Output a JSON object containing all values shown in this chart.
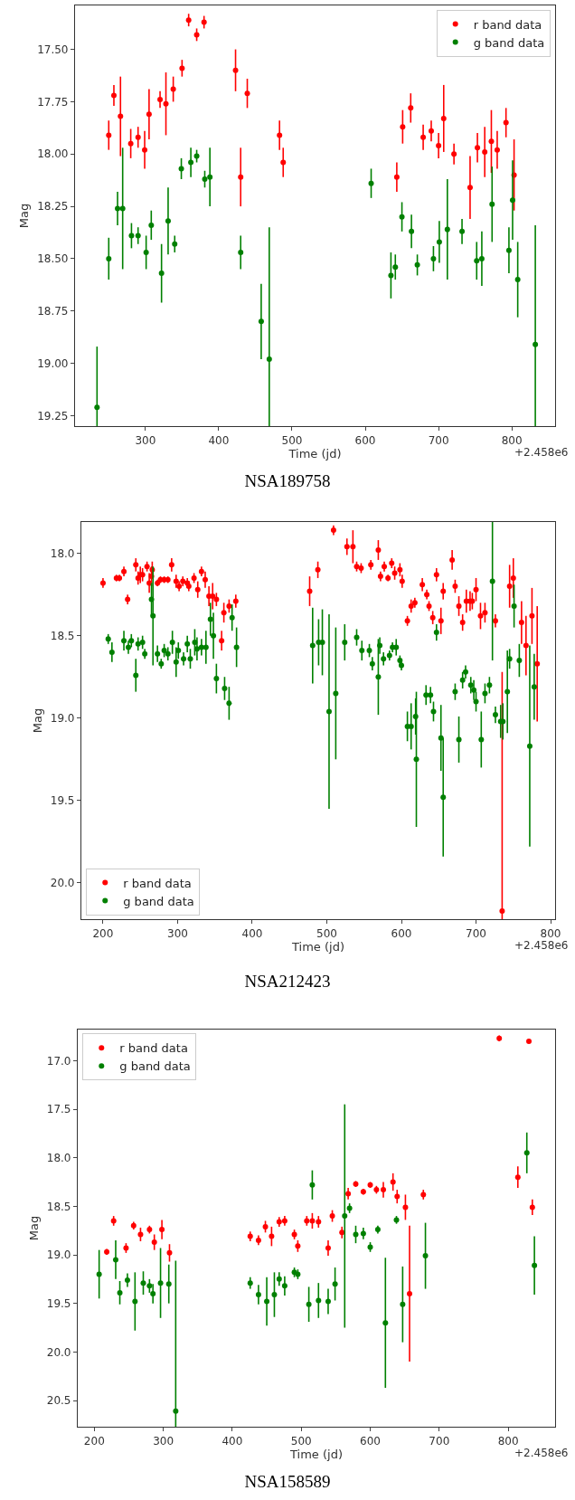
{
  "chart_data": [
    {
      "type": "scatter",
      "title": "NSA189758",
      "xlabel": "Time (jd)",
      "ylabel": "Mag",
      "annotations": [
        "+2.458e6"
      ],
      "xlim": [
        204,
        859
      ],
      "xticks": [
        300,
        400,
        500,
        600,
        700,
        800
      ],
      "ylim": [
        19.3,
        17.29
      ],
      "yticks": [
        {
          "value": 17.5,
          "label": "17.50"
        },
        {
          "value": 17.75,
          "label": "17.75"
        },
        {
          "value": 18.0,
          "label": "18.00"
        },
        {
          "value": 18.25,
          "label": "18.25"
        },
        {
          "value": 18.5,
          "label": "18.50"
        },
        {
          "value": 18.75,
          "label": "18.75"
        },
        {
          "value": 19.0,
          "label": "19.00"
        },
        {
          "value": 19.25,
          "label": "19.25"
        }
      ],
      "grid": false,
      "legend": "top right",
      "marker": "circle",
      "series": [
        {
          "name": "r band data",
          "color": "#ff0000",
          "x": [
            250,
            257,
            266,
            280,
            290,
            299,
            305,
            320,
            328,
            338,
            350,
            359,
            370,
            380,
            423,
            430,
            439,
            483,
            488,
            643,
            651,
            662,
            679,
            690,
            700,
            707,
            721,
            743,
            753,
            763,
            772,
            780,
            792,
            803
          ],
          "values": [
            17.91,
            17.72,
            17.82,
            17.95,
            17.92,
            17.98,
            17.81,
            17.74,
            17.76,
            17.69,
            17.59,
            17.36,
            17.43,
            17.37,
            17.6,
            18.11,
            17.71,
            17.91,
            18.04,
            18.11,
            17.87,
            17.78,
            17.92,
            17.89,
            17.96,
            17.83,
            18.0,
            18.16,
            17.97,
            17.99,
            17.94,
            17.98,
            17.85,
            18.1
          ],
          "errors": [
            0.07,
            0.05,
            0.19,
            0.07,
            0.05,
            0.09,
            0.12,
            0.04,
            0.15,
            0.06,
            0.04,
            0.03,
            0.03,
            0.03,
            0.1,
            0.14,
            0.07,
            0.07,
            0.07,
            0.07,
            0.08,
            0.07,
            0.06,
            0.05,
            0.06,
            0.16,
            0.05,
            0.15,
            0.07,
            0.12,
            0.15,
            0.09,
            0.07,
            0.17
          ]
        },
        {
          "name": "g band data",
          "color": "#008000",
          "x": [
            234,
            250,
            262,
            269,
            281,
            290,
            301,
            308,
            322,
            331,
            340,
            349,
            362,
            370,
            381,
            388,
            430,
            458,
            469,
            608,
            635,
            641,
            650,
            663,
            671,
            693,
            701,
            712,
            732,
            752,
            759,
            773,
            796,
            801,
            808,
            832
          ],
          "values": [
            19.21,
            18.5,
            18.26,
            18.26,
            18.39,
            18.39,
            18.47,
            18.34,
            18.57,
            18.32,
            18.43,
            18.07,
            18.04,
            18.01,
            18.12,
            18.11,
            18.47,
            18.8,
            18.98,
            18.14,
            18.58,
            18.54,
            18.3,
            18.37,
            18.53,
            18.5,
            18.42,
            18.36,
            18.37,
            18.51,
            18.5,
            18.24,
            18.46,
            18.22,
            18.6,
            18.91
          ],
          "errors": [
            0.29,
            0.1,
            0.08,
            0.29,
            0.06,
            0.04,
            0.08,
            0.07,
            0.14,
            0.16,
            0.04,
            0.05,
            0.07,
            0.03,
            0.04,
            0.14,
            0.08,
            0.18,
            0.63,
            0.07,
            0.11,
            0.06,
            0.07,
            0.08,
            0.05,
            0.06,
            0.1,
            0.24,
            0.06,
            0.09,
            0.13,
            0.18,
            0.11,
            0.19,
            0.18,
            0.57
          ]
        }
      ]
    },
    {
      "type": "scatter",
      "title": "NSA212423",
      "xlabel": "Time (jd)",
      "ylabel": "Mag",
      "annotations": [
        "+2.458e6"
      ],
      "xlim": [
        171,
        806
      ],
      "xticks": [
        200,
        300,
        400,
        500,
        600,
        700,
        800
      ],
      "ylim": [
        20.22,
        17.81
      ],
      "yticks": [
        {
          "value": 18.0,
          "label": "18.0"
        },
        {
          "value": 18.5,
          "label": "18.5"
        },
        {
          "value": 19.0,
          "label": "19.0"
        },
        {
          "value": 19.5,
          "label": "19.5"
        },
        {
          "value": 20.0,
          "label": "20.0"
        }
      ],
      "grid": false,
      "legend": "bottom left",
      "marker": "circle",
      "series": [
        {
          "name": "r band data",
          "color": "#ff0000",
          "x": [
            200,
            218,
            222,
            228,
            233,
            244,
            247,
            250,
            253,
            259,
            262,
            265,
            266,
            273,
            277,
            282,
            287,
            292,
            298,
            302,
            307,
            313,
            315,
            322,
            327,
            332,
            337,
            342,
            347,
            352,
            359,
            362,
            369,
            378,
            477,
            488,
            509,
            527,
            535,
            540,
            546,
            559,
            569,
            572,
            577,
            582,
            587,
            591,
            598,
            601,
            608,
            613,
            618,
            628,
            634,
            637,
            642,
            647,
            653,
            656,
            668,
            672,
            677,
            682,
            687,
            692,
            695,
            700,
            706,
            712,
            726,
            735,
            745,
            750,
            761,
            767,
            775,
            782
          ],
          "values": [
            18.18,
            18.15,
            18.15,
            18.11,
            18.28,
            18.07,
            18.15,
            18.13,
            18.13,
            18.08,
            18.18,
            18.14,
            18.1,
            18.18,
            18.16,
            18.16,
            18.16,
            18.07,
            18.17,
            18.2,
            18.17,
            18.18,
            18.2,
            18.15,
            18.22,
            18.11,
            18.16,
            18.26,
            18.26,
            18.28,
            18.53,
            18.36,
            18.32,
            18.29,
            18.23,
            18.1,
            17.86,
            17.96,
            17.96,
            18.08,
            18.09,
            18.07,
            17.98,
            18.14,
            18.08,
            18.15,
            18.06,
            18.12,
            18.1,
            18.17,
            18.41,
            18.32,
            18.3,
            18.19,
            18.25,
            18.32,
            18.39,
            18.13,
            18.41,
            18.23,
            18.04,
            18.2,
            18.32,
            18.42,
            18.29,
            18.29,
            18.29,
            18.22,
            18.38,
            18.36,
            18.41,
            20.17,
            18.2,
            18.15,
            18.42,
            18.56,
            18.38,
            18.67
          ],
          "errors": [
            0.03,
            0.02,
            0.02,
            0.03,
            0.03,
            0.04,
            0.04,
            0.05,
            0.04,
            0.03,
            0.06,
            0.06,
            0.05,
            0.02,
            0.02,
            0.02,
            0.02,
            0.04,
            0.04,
            0.03,
            0.03,
            0.03,
            0.03,
            0.03,
            0.05,
            0.03,
            0.05,
            0.06,
            0.08,
            0.04,
            0.06,
            0.06,
            0.04,
            0.04,
            0.09,
            0.05,
            0.03,
            0.05,
            0.1,
            0.03,
            0.03,
            0.03,
            0.06,
            0.03,
            0.03,
            0.02,
            0.03,
            0.04,
            0.04,
            0.04,
            0.03,
            0.04,
            0.03,
            0.04,
            0.03,
            0.03,
            0.04,
            0.04,
            0.08,
            0.05,
            0.06,
            0.04,
            0.06,
            0.05,
            0.07,
            0.06,
            0.05,
            0.07,
            0.08,
            0.06,
            0.04,
            1.45,
            0.13,
            0.12,
            0.13,
            0.18,
            0.17,
            0.35
          ]
        },
        {
          "name": "g band data",
          "color": "#008000",
          "x": [
            207,
            212,
            228,
            234,
            238,
            244,
            247,
            253,
            256,
            265,
            267,
            273,
            278,
            282,
            287,
            293,
            298,
            301,
            308,
            313,
            317,
            323,
            326,
            332,
            338,
            344,
            348,
            352,
            363,
            369,
            373,
            379,
            481,
            489,
            494,
            503,
            512,
            524,
            540,
            547,
            557,
            561,
            569,
            571,
            576,
            584,
            588,
            593,
            598,
            600,
            608,
            613,
            619,
            620,
            633,
            639,
            643,
            647,
            653,
            656,
            672,
            677,
            682,
            686,
            693,
            697,
            700,
            707,
            712,
            718,
            722,
            726,
            733,
            736,
            742,
            745,
            751,
            758,
            772,
            778
          ],
          "values": [
            18.52,
            18.6,
            18.53,
            18.57,
            18.53,
            18.74,
            18.55,
            18.54,
            18.61,
            18.28,
            18.38,
            18.61,
            18.67,
            18.59,
            18.61,
            18.54,
            18.66,
            18.59,
            18.64,
            18.55,
            18.64,
            18.54,
            18.58,
            18.57,
            18.57,
            18.4,
            18.5,
            18.76,
            18.82,
            18.91,
            18.39,
            18.57,
            18.56,
            18.54,
            18.54,
            18.96,
            18.85,
            18.54,
            18.51,
            18.59,
            18.59,
            18.67,
            18.75,
            18.56,
            18.64,
            18.62,
            18.57,
            18.57,
            18.65,
            18.68,
            19.05,
            19.05,
            18.99,
            19.25,
            18.86,
            18.86,
            18.96,
            18.48,
            19.12,
            19.48,
            18.84,
            19.13,
            18.77,
            18.72,
            18.8,
            18.83,
            18.9,
            19.13,
            18.85,
            18.8,
            18.17,
            18.98,
            19.02,
            19.02,
            18.84,
            18.64,
            18.32,
            18.65,
            19.17,
            18.81
          ],
          "errors": [
            0.03,
            0.06,
            0.06,
            0.04,
            0.04,
            0.1,
            0.04,
            0.04,
            0.03,
            0.1,
            0.3,
            0.05,
            0.03,
            0.04,
            0.04,
            0.07,
            0.09,
            0.05,
            0.04,
            0.05,
            0.06,
            0.08,
            0.07,
            0.05,
            0.1,
            0.1,
            0.14,
            0.09,
            0.07,
            0.1,
            0.08,
            0.12,
            0.23,
            0.14,
            0.2,
            0.59,
            0.4,
            0.11,
            0.05,
            0.06,
            0.04,
            0.04,
            0.23,
            0.05,
            0.04,
            0.03,
            0.03,
            0.05,
            0.03,
            0.03,
            0.09,
            0.14,
            0.11,
            0.41,
            0.06,
            0.05,
            0.06,
            0.05,
            0.2,
            0.36,
            0.05,
            0.14,
            0.05,
            0.04,
            0.05,
            0.06,
            0.06,
            0.17,
            0.06,
            0.05,
            0.48,
            0.05,
            0.1,
            0.11,
            0.25,
            0.06,
            0.13,
            0.1,
            0.61,
            0.2
          ]
        }
      ]
    },
    {
      "type": "scatter",
      "title": "NSA158589",
      "xlabel": "Time (jd)",
      "ylabel": "Mag",
      "annotations": [
        "+2.458e6"
      ],
      "xlim": [
        176,
        868
      ],
      "xticks": [
        200,
        300,
        400,
        500,
        600,
        700,
        800
      ],
      "ylim": [
        20.77,
        16.68
      ],
      "yticks": [
        {
          "value": 17.0,
          "label": "17.0"
        },
        {
          "value": 17.5,
          "label": "17.5"
        },
        {
          "value": 18.0,
          "label": "18.0"
        },
        {
          "value": 18.5,
          "label": "18.5"
        },
        {
          "value": 19.0,
          "label": "19.0"
        },
        {
          "value": 19.5,
          "label": "19.5"
        },
        {
          "value": 20.0,
          "label": "20.0"
        },
        {
          "value": 20.5,
          "label": "20.5"
        }
      ],
      "grid": false,
      "legend": "top left",
      "marker": "circle",
      "series": [
        {
          "name": "r band data",
          "color": "#ff0000",
          "x": [
            218,
            228,
            246,
            257,
            267,
            280,
            287,
            298,
            309,
            426,
            438,
            448,
            457,
            468,
            476,
            490,
            495,
            508,
            516,
            525,
            539,
            545,
            559,
            568,
            579,
            590,
            600,
            609,
            619,
            633,
            639,
            651,
            657,
            677,
            787,
            814,
            830,
            835
          ],
          "values": [
            18.97,
            18.65,
            18.93,
            18.7,
            18.79,
            18.74,
            18.87,
            18.74,
            18.98,
            18.81,
            18.85,
            18.71,
            18.81,
            18.66,
            18.65,
            18.79,
            18.91,
            18.65,
            18.65,
            18.66,
            18.93,
            18.6,
            18.77,
            18.37,
            18.27,
            18.35,
            18.28,
            18.33,
            18.33,
            18.25,
            18.4,
            18.51,
            19.4,
            18.38,
            16.77,
            18.2,
            16.8,
            18.51
          ],
          "errors": [
            0.03,
            0.05,
            0.05,
            0.04,
            0.07,
            0.04,
            0.08,
            0.1,
            0.09,
            0.05,
            0.05,
            0.06,
            0.1,
            0.05,
            0.05,
            0.05,
            0.06,
            0.05,
            0.08,
            0.06,
            0.08,
            0.06,
            0.06,
            0.06,
            0.03,
            0.03,
            0.03,
            0.04,
            0.08,
            0.09,
            0.07,
            0.13,
            0.7,
            0.05,
            0.03,
            0.11,
            0.02,
            0.08
          ]
        },
        {
          "name": "g band data",
          "color": "#008000",
          "x": [
            207,
            231,
            237,
            248,
            259,
            271,
            280,
            285,
            296,
            308,
            318,
            426,
            438,
            450,
            461,
            468,
            476,
            490,
            495,
            511,
            516,
            525,
            539,
            549,
            563,
            570,
            579,
            590,
            600,
            611,
            622,
            638,
            647,
            680,
            827,
            838
          ],
          "values": [
            19.2,
            19.05,
            19.39,
            19.26,
            19.48,
            19.29,
            19.32,
            19.4,
            19.29,
            19.3,
            20.61,
            19.29,
            19.41,
            19.48,
            19.41,
            19.25,
            19.32,
            19.18,
            19.2,
            19.51,
            18.28,
            19.47,
            19.48,
            19.3,
            18.6,
            18.52,
            18.79,
            18.78,
            18.92,
            18.74,
            19.7,
            18.64,
            19.51,
            19.01,
            17.95,
            19.11
          ],
          "errors": [
            0.25,
            0.2,
            0.12,
            0.07,
            0.3,
            0.12,
            0.07,
            0.1,
            0.36,
            0.2,
            1.55,
            0.06,
            0.1,
            0.25,
            0.23,
            0.07,
            0.1,
            0.05,
            0.05,
            0.18,
            0.15,
            0.18,
            0.13,
            0.17,
            1.15,
            0.05,
            0.09,
            0.06,
            0.05,
            0.04,
            0.67,
            0.04,
            0.39,
            0.34,
            0.21,
            0.3
          ]
        }
      ]
    }
  ]
}
